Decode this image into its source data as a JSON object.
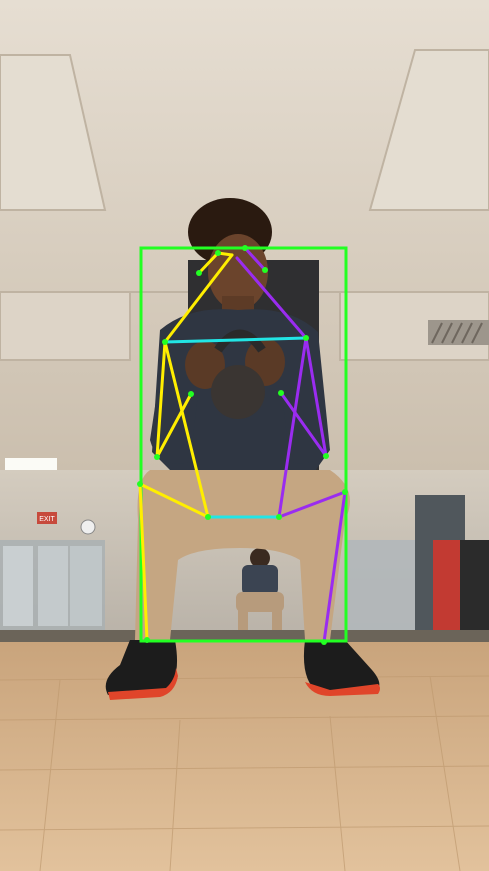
{
  "scene": {
    "description_tags": [
      "gym-interior",
      "person-squat-with-kettlebell",
      "pose-estimation-overlay"
    ],
    "wall_sign_text": "EXIT"
  },
  "overlay": {
    "bbox_color": "#22ff22",
    "left_side_color": "#ffee00",
    "right_side_color": "#9a2cf0",
    "torso_color": "#22e5e5",
    "keypoint_color": "#22ff22"
  },
  "palette": {
    "ceiling": "#d8cfc2",
    "wall": "#cfc6b8",
    "floor": "#d9b68f",
    "skin": "#5a3a26",
    "shirt": "#2e3440",
    "pants": "#c7a884",
    "shoe": "#1a1a1a",
    "sole": "#e0452a"
  }
}
